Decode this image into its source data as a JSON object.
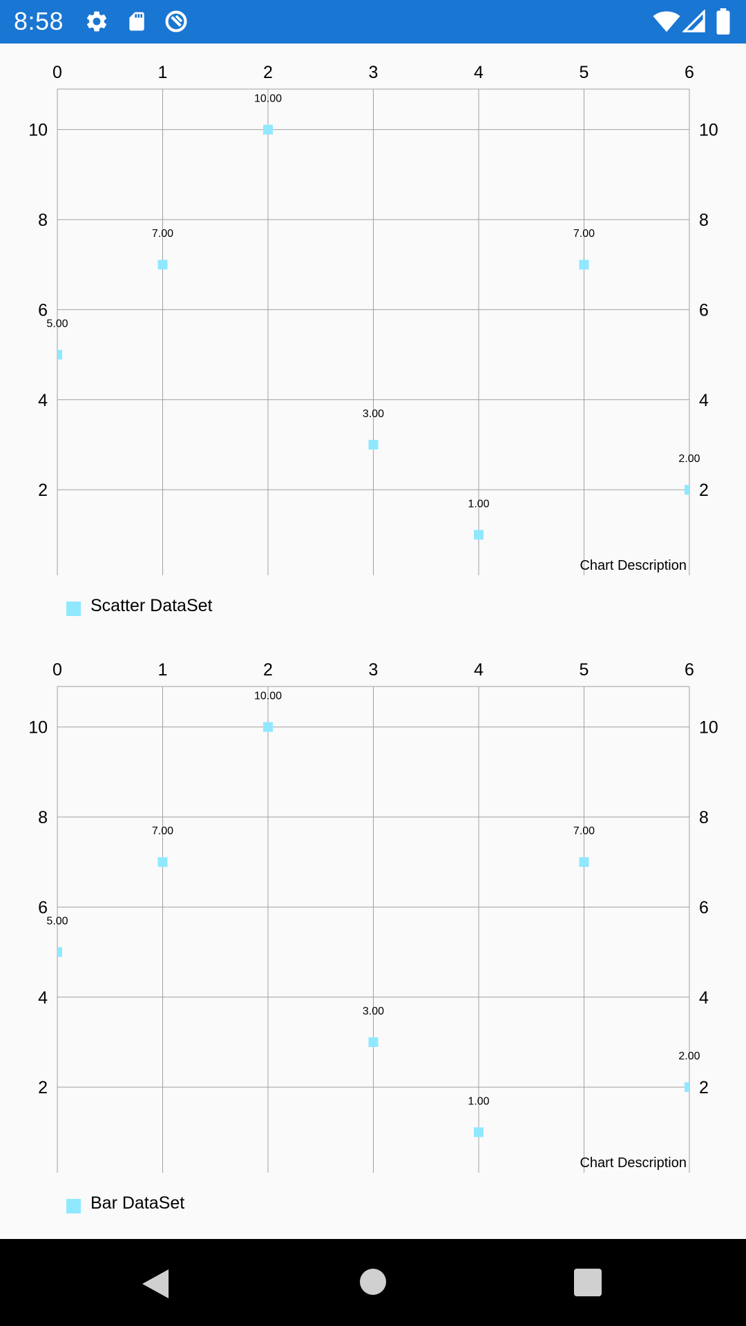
{
  "status_bar": {
    "time": "8:58",
    "icons": [
      "settings-icon",
      "sd-card-icon",
      "sync-icon",
      "wifi-icon",
      "cellular-signal-icon",
      "battery-icon"
    ],
    "background": "#1976d2"
  },
  "nav_bar": {
    "buttons": [
      "back-button",
      "home-button",
      "recents-button"
    ]
  },
  "colors": {
    "marker": "#90e8ff",
    "grid": "#a0a0a0",
    "text": "#000000"
  },
  "chart_data": [
    {
      "type": "scatter",
      "x": [
        0,
        1,
        2,
        3,
        4,
        5,
        6
      ],
      "y": [
        5,
        7,
        10,
        3,
        1,
        7,
        2
      ],
      "value_labels": [
        "5.00",
        "7.00",
        "10.00",
        "3.00",
        "1.00",
        "7.00",
        "2.00"
      ],
      "xlim": [
        0,
        6
      ],
      "ylim": [
        0.1,
        10.9
      ],
      "x_ticks": [
        "0",
        "1",
        "2",
        "3",
        "4",
        "5",
        "6"
      ],
      "y_ticks": [
        "2",
        "4",
        "6",
        "8",
        "10"
      ],
      "x_axis_position": "top",
      "y_axis": "both sides",
      "grid": true,
      "description": "Chart Description",
      "legend": {
        "position": "bottom-left",
        "entries": [
          "Scatter DataSet"
        ]
      }
    },
    {
      "type": "scatter",
      "x": [
        0,
        1,
        2,
        3,
        4,
        5,
        6
      ],
      "y": [
        5,
        7,
        10,
        3,
        1,
        7,
        2
      ],
      "value_labels": [
        "5.00",
        "7.00",
        "10.00",
        "3.00",
        "1.00",
        "7.00",
        "2.00"
      ],
      "xlim": [
        0,
        6
      ],
      "ylim": [
        0.1,
        10.9
      ],
      "x_ticks": [
        "0",
        "1",
        "2",
        "3",
        "4",
        "5",
        "6"
      ],
      "y_ticks": [
        "2",
        "4",
        "6",
        "8",
        "10"
      ],
      "x_axis_position": "top",
      "y_axis": "both sides",
      "grid": true,
      "description": "Chart Description",
      "legend": {
        "position": "bottom-left",
        "entries": [
          "Bar DataSet"
        ]
      }
    }
  ]
}
